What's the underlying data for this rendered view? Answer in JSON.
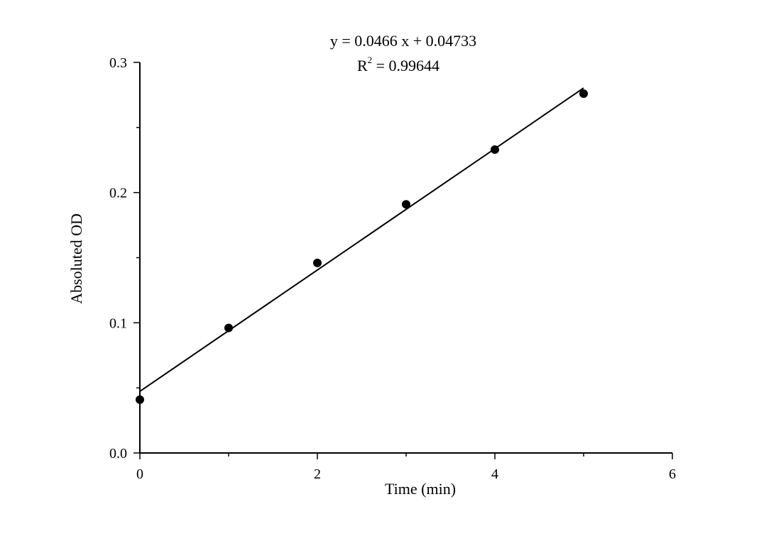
{
  "chart_data": {
    "type": "scatter",
    "title": "",
    "xlabel": "Time (min)",
    "ylabel": "Absoluted OD",
    "xlim": [
      0,
      6
    ],
    "ylim": [
      0,
      0.3
    ],
    "x_ticks": [
      0,
      2,
      4,
      6
    ],
    "x_tick_labels": [
      "0",
      "2",
      "4",
      "6"
    ],
    "y_ticks": [
      0.0,
      0.1,
      0.2,
      0.3
    ],
    "y_tick_labels": [
      "0.0",
      "0.1",
      "0.2",
      "0.3"
    ],
    "grid": false,
    "series": [
      {
        "x": [
          0,
          1,
          2,
          3,
          4,
          5
        ],
        "y": [
          0.041,
          0.096,
          0.146,
          0.191,
          0.233,
          0.276
        ],
        "marker": "circle",
        "color": "#000000"
      }
    ],
    "fit_line": {
      "slope": 0.0466,
      "intercept": 0.04733,
      "x_range": [
        0,
        5
      ],
      "color": "#000000"
    },
    "annotations": {
      "equation": "y = 0.0466 x + 0.04733",
      "r2_base": "R",
      "r2_exp": "2",
      "r2_value": " = 0.99644"
    }
  }
}
